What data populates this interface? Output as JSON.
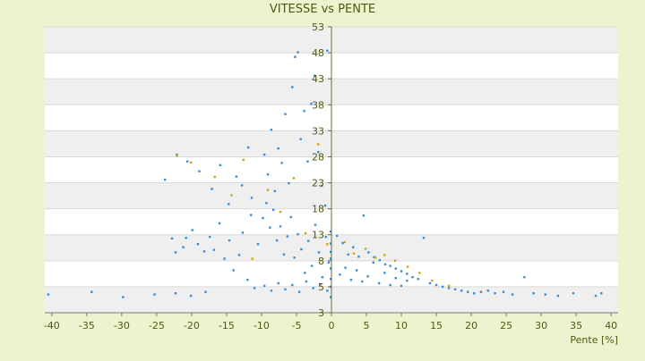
{
  "chart_data": {
    "type": "scatter",
    "title": "VITESSE vs PENTE",
    "xlabel": "Pente [%]",
    "ylabel": "",
    "xlim": [
      -41,
      41
    ],
    "ylim": [
      3,
      53
    ],
    "x_ticks": [
      "-40",
      "-35",
      "-30",
      "-25",
      "-20",
      "-15",
      "-10",
      "-5",
      "0",
      "5",
      "10",
      "15",
      "20",
      "25",
      "30",
      "35",
      "40"
    ],
    "y_ticks": [
      "3",
      "5",
      "8",
      "13",
      "18",
      "23",
      "28",
      "33",
      "38",
      "43",
      "48",
      "53"
    ],
    "grid": true,
    "legend": "none",
    "colors": {
      "background": "#eef3cf",
      "plot_band_light": "#ffffff",
      "plot_band_dark": "#efefef",
      "text": "#4d5a10",
      "series_primary": "#3a8bd6",
      "series_secondary": "#c9a818"
    },
    "series": [
      {
        "color": "#3a8bd6",
        "points": [
          [
            -40.5,
            4.4
          ],
          [
            -34.3,
            4.6
          ],
          [
            -29.8,
            4.2
          ],
          [
            -25.3,
            4.4
          ],
          [
            -22.3,
            4.5
          ],
          [
            -20.1,
            4.3
          ],
          [
            -18.0,
            4.6
          ],
          [
            -22.8,
            12.3
          ],
          [
            -22.3,
            9.6
          ],
          [
            -21.2,
            10.6
          ],
          [
            -20.8,
            12.4
          ],
          [
            -19.9,
            13.9
          ],
          [
            -19.1,
            11.2
          ],
          [
            -18.2,
            9.8
          ],
          [
            -17.4,
            12.6
          ],
          [
            -16.8,
            10.1
          ],
          [
            -16.0,
            15.2
          ],
          [
            -15.3,
            8.4
          ],
          [
            -14.6,
            11.9
          ],
          [
            -14.0,
            6.9
          ],
          [
            -13.2,
            9.1
          ],
          [
            -12.7,
            13.4
          ],
          [
            -12.0,
            5.8
          ],
          [
            -11.5,
            16.8
          ],
          [
            -11.0,
            4.9
          ],
          [
            -10.5,
            11.2
          ],
          [
            -23.8,
            23.6
          ],
          [
            -22.1,
            28.4
          ],
          [
            -20.6,
            27.1
          ],
          [
            -18.9,
            25.2
          ],
          [
            -17.1,
            21.8
          ],
          [
            -15.9,
            26.4
          ],
          [
            -14.7,
            18.9
          ],
          [
            -13.6,
            24.2
          ],
          [
            -12.8,
            22.5
          ],
          [
            -11.9,
            29.8
          ],
          [
            -11.4,
            20.1
          ],
          [
            -9.6,
            28.4
          ],
          [
            -9.1,
            24.6
          ],
          [
            -8.6,
            33.2
          ],
          [
            -8.1,
            21.4
          ],
          [
            -7.6,
            29.6
          ],
          [
            -7.1,
            26.8
          ],
          [
            -6.6,
            36.2
          ],
          [
            -6.1,
            22.9
          ],
          [
            -5.6,
            41.4
          ],
          [
            -5.2,
            47.2
          ],
          [
            -4.8,
            48.1
          ],
          [
            -4.4,
            31.4
          ],
          [
            -3.9,
            36.8
          ],
          [
            -3.4,
            27.1
          ],
          [
            -2.9,
            38.2
          ],
          [
            -2.4,
            43.6
          ],
          [
            -1.9,
            28.9
          ],
          [
            -1.4,
            22.4
          ],
          [
            -0.9,
            18.6
          ],
          [
            -0.6,
            48.4
          ],
          [
            -9.8,
            16.2
          ],
          [
            -9.3,
            19.1
          ],
          [
            -8.8,
            14.4
          ],
          [
            -8.3,
            17.8
          ],
          [
            -7.8,
            11.9
          ],
          [
            -7.3,
            14.6
          ],
          [
            -6.8,
            9.2
          ],
          [
            -6.3,
            12.7
          ],
          [
            -5.8,
            16.4
          ],
          [
            -5.3,
            8.6
          ],
          [
            -4.8,
            13.1
          ],
          [
            -4.3,
            10.2
          ],
          [
            -3.8,
            6.6
          ],
          [
            -3.3,
            11.8
          ],
          [
            -2.8,
            7.4
          ],
          [
            -2.3,
            14.9
          ],
          [
            -1.8,
            9.6
          ],
          [
            -1.3,
            6.1
          ],
          [
            -0.8,
            12.6
          ],
          [
            -0.4,
            7.8
          ],
          [
            -9.6,
            5.1
          ],
          [
            -8.6,
            4.7
          ],
          [
            -7.6,
            5.4
          ],
          [
            -6.6,
            4.8
          ],
          [
            -5.6,
            5.2
          ],
          [
            -4.6,
            4.6
          ],
          [
            -3.6,
            5.6
          ],
          [
            -2.6,
            4.9
          ],
          [
            -1.6,
            5.3
          ],
          [
            -0.6,
            4.7
          ],
          [
            -0.1,
            4.2
          ],
          [
            -0.1,
            5.0
          ],
          [
            -0.1,
            5.9
          ],
          [
            -0.1,
            7.1
          ],
          [
            -0.1,
            8.4
          ],
          [
            -0.1,
            9.7
          ],
          [
            -0.1,
            11.3
          ],
          [
            -0.1,
            13.6
          ],
          [
            0.8,
            12.8
          ],
          [
            1.6,
            11.4
          ],
          [
            2.4,
            9.2
          ],
          [
            3.1,
            10.6
          ],
          [
            3.9,
            8.8
          ],
          [
            4.6,
            16.7
          ],
          [
            5.3,
            9.6
          ],
          [
            6.1,
            8.7
          ],
          [
            6.9,
            8.1
          ],
          [
            7.7,
            7.6
          ],
          [
            8.4,
            7.4
          ],
          [
            9.2,
            7.1
          ],
          [
            10.0,
            6.8
          ],
          [
            10.8,
            6.5
          ],
          [
            11.6,
            6.1
          ],
          [
            12.4,
            5.9
          ],
          [
            13.2,
            12.4
          ],
          [
            14.1,
            5.4
          ],
          [
            15.0,
            5.2
          ],
          [
            15.9,
            5.0
          ],
          [
            16.8,
            4.9
          ],
          [
            17.7,
            4.8
          ],
          [
            18.6,
            4.7
          ],
          [
            19.5,
            4.6
          ],
          [
            20.4,
            4.5
          ],
          [
            21.4,
            4.6
          ],
          [
            22.4,
            4.7
          ],
          [
            23.4,
            4.5
          ],
          [
            24.6,
            4.6
          ],
          [
            25.9,
            4.4
          ],
          [
            27.6,
            6.1
          ],
          [
            28.9,
            4.5
          ],
          [
            30.6,
            4.4
          ],
          [
            32.4,
            4.3
          ],
          [
            34.6,
            4.5
          ],
          [
            37.8,
            4.3
          ],
          [
            38.6,
            4.5
          ],
          [
            1.2,
            6.4
          ],
          [
            2.0,
            7.2
          ],
          [
            2.8,
            5.8
          ],
          [
            3.6,
            6.9
          ],
          [
            4.4,
            5.6
          ],
          [
            5.2,
            6.2
          ],
          [
            6.0,
            7.8
          ],
          [
            6.8,
            5.4
          ],
          [
            7.6,
            6.6
          ],
          [
            8.4,
            5.2
          ],
          [
            9.2,
            6.0
          ],
          [
            10.0,
            5.1
          ],
          [
            10.8,
            5.7
          ]
        ]
      },
      {
        "color": "#c9a818",
        "points": [
          [
            -22.1,
            28.2
          ],
          [
            -20.1,
            26.9
          ],
          [
            -16.7,
            24.1
          ],
          [
            -14.3,
            20.6
          ],
          [
            -12.6,
            27.4
          ],
          [
            -11.3,
            8.4
          ],
          [
            -9.1,
            21.6
          ],
          [
            -7.3,
            17.4
          ],
          [
            -5.4,
            23.9
          ],
          [
            -3.7,
            13.3
          ],
          [
            -1.9,
            30.4
          ],
          [
            -0.6,
            11.2
          ],
          [
            1.9,
            11.6
          ],
          [
            3.2,
            9.4
          ],
          [
            4.9,
            10.3
          ],
          [
            6.3,
            8.6
          ],
          [
            7.6,
            9.1
          ],
          [
            9.1,
            8.0
          ],
          [
            10.9,
            7.3
          ],
          [
            12.6,
            6.6
          ],
          [
            14.4,
            5.7
          ],
          [
            16.8,
            5.1
          ]
        ]
      }
    ]
  }
}
